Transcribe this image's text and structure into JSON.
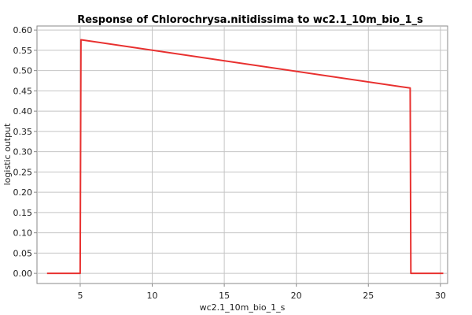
{
  "chart_data": {
    "type": "line",
    "title": "Response of Chlorochrysa.nitidissima to wc2.1_10m_bio_1_s",
    "xlabel": "wc2.1_10m_bio_1_s",
    "ylabel": "logistic output",
    "xlim": [
      2,
      30.5
    ],
    "ylim": [
      -0.025,
      0.61
    ],
    "xticks": [
      5,
      10,
      15,
      20,
      25,
      30
    ],
    "xtick_labels": [
      "5",
      "10",
      "15",
      "20",
      "25",
      "30"
    ],
    "yticks": [
      0.0,
      0.05,
      0.1,
      0.15,
      0.2,
      0.25,
      0.3,
      0.35,
      0.4,
      0.45,
      0.5,
      0.55,
      0.6
    ],
    "ytick_labels": [
      "0.00",
      "0.05",
      "0.10",
      "0.15",
      "0.20",
      "0.25",
      "0.30",
      "0.35",
      "0.40",
      "0.45",
      "0.50",
      "0.55",
      "0.60"
    ],
    "grid": true,
    "series": [
      {
        "color": "#e8302f",
        "x": [
          2.7,
          5.0,
          5.05,
          27.9,
          27.95,
          30.2
        ],
        "y": [
          0.0,
          0.0,
          0.576,
          0.457,
          0.0,
          0.0
        ]
      }
    ]
  }
}
